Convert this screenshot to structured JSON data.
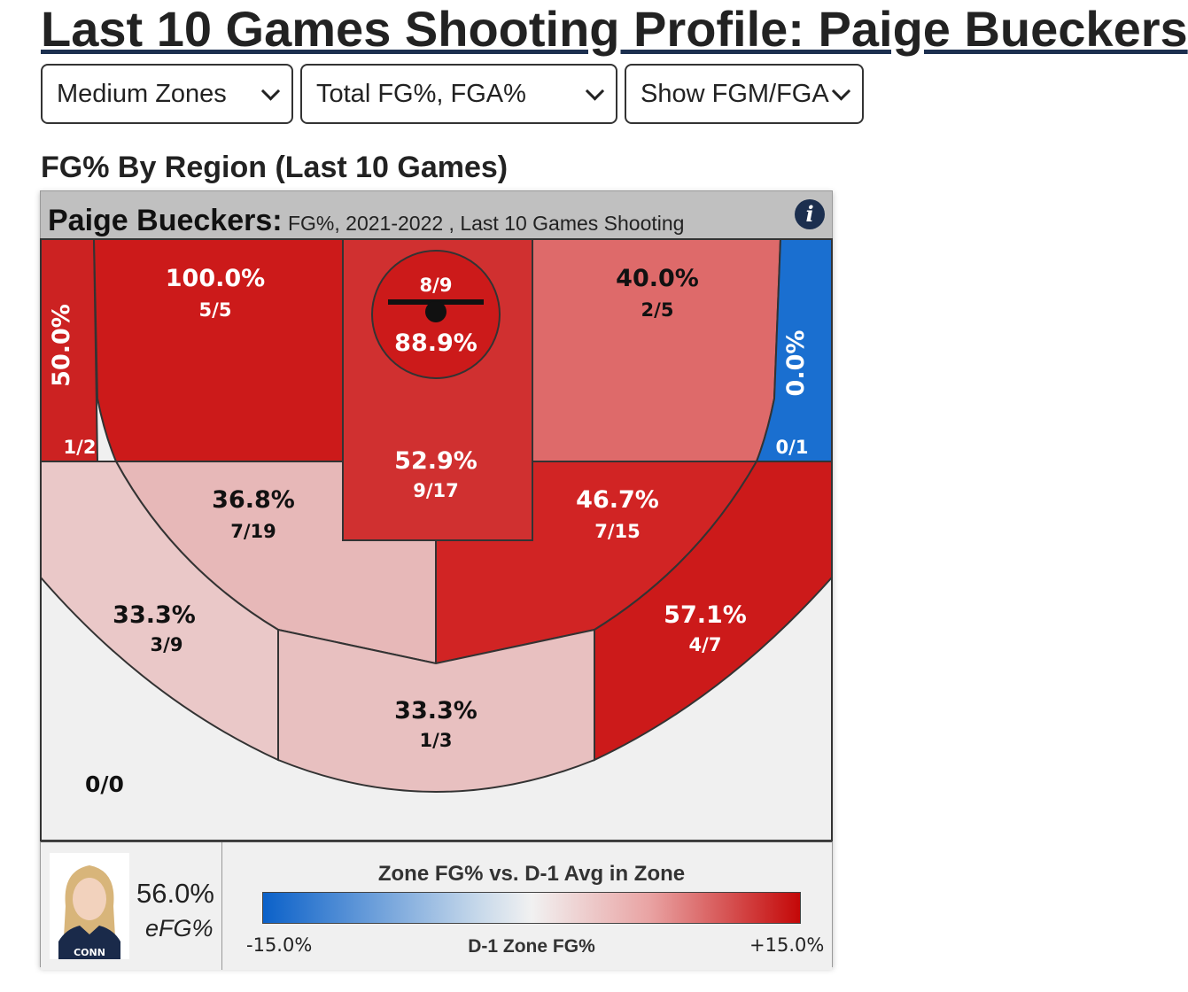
{
  "page": {
    "title": "Last 10 Games Shooting Profile: Paige Bueckers",
    "section_title": "FG% By Region (Last 10 Games)"
  },
  "dropdowns": [
    {
      "value": "Medium Zones"
    },
    {
      "value": "Total FG%, FGA%"
    },
    {
      "value": "Show FGM/FGA"
    }
  ],
  "card": {
    "player_name": "Paige Bueckers:",
    "meta": " FG%, 2021-2022 , Last 10 Games Shooting",
    "info_icon": "info-icon"
  },
  "chart_data": {
    "type": "heatmap",
    "title": "Paige Bueckers: FG%, 2021-2022 , Last 10 Games Shooting",
    "zones": [
      {
        "id": "left-corner-mid",
        "pct": "50.0%",
        "made": 1,
        "att": 2,
        "fraction": "1/2",
        "color": "#cc2222"
      },
      {
        "id": "left-baseline-mid",
        "pct": "100.0%",
        "made": 5,
        "att": 5,
        "fraction": "5/5",
        "color": "#cc1a1a"
      },
      {
        "id": "restricted-area",
        "pct": "88.9%",
        "made": 8,
        "att": 9,
        "fraction": "8/9",
        "color": "#cc1a1a"
      },
      {
        "id": "paint",
        "pct": "52.9%",
        "made": 9,
        "att": 17,
        "fraction": "9/17",
        "color": "#d03030"
      },
      {
        "id": "right-baseline-mid",
        "pct": "40.0%",
        "made": 2,
        "att": 5,
        "fraction": "2/5",
        "color": "#de6a6a"
      },
      {
        "id": "right-corner-mid",
        "pct": "0.0%",
        "made": 0,
        "att": 1,
        "fraction": "0/1",
        "color": "#1a6fd0"
      },
      {
        "id": "left-wing-mid",
        "pct": "36.8%",
        "made": 7,
        "att": 19,
        "fraction": "7/19",
        "color": "#e7b8b8"
      },
      {
        "id": "right-wing-mid",
        "pct": "46.7%",
        "made": 7,
        "att": 15,
        "fraction": "7/15",
        "color": "#d12424"
      },
      {
        "id": "left-wing-three",
        "pct": "33.3%",
        "made": 3,
        "att": 9,
        "fraction": "3/9",
        "color": "#eac8c8"
      },
      {
        "id": "top-key-three",
        "pct": "33.3%",
        "made": 1,
        "att": 3,
        "fraction": "1/3",
        "color": "#e8c0c0"
      },
      {
        "id": "right-wing-three",
        "pct": "57.1%",
        "made": 4,
        "att": 7,
        "fraction": "4/7",
        "color": "#cc1a1a"
      },
      {
        "id": "backcourt",
        "pct": "",
        "made": 0,
        "att": 0,
        "fraction": "0/0",
        "color": "#f0f0f0"
      }
    ],
    "legend": {
      "title": "Zone FG% vs. D-1 Avg in Zone",
      "min_label": "-15.0%",
      "max_label": "+15.0%",
      "axis_label": "D-1 Zone FG%",
      "range": [
        -15,
        15
      ],
      "colors": {
        "low": "#0b61c9",
        "mid": "#f1f1f1",
        "high": "#c40808"
      }
    }
  },
  "footer": {
    "efg_value": "56.0%",
    "efg_label": "eFG%",
    "avatar_jersey_text": "CONN"
  }
}
